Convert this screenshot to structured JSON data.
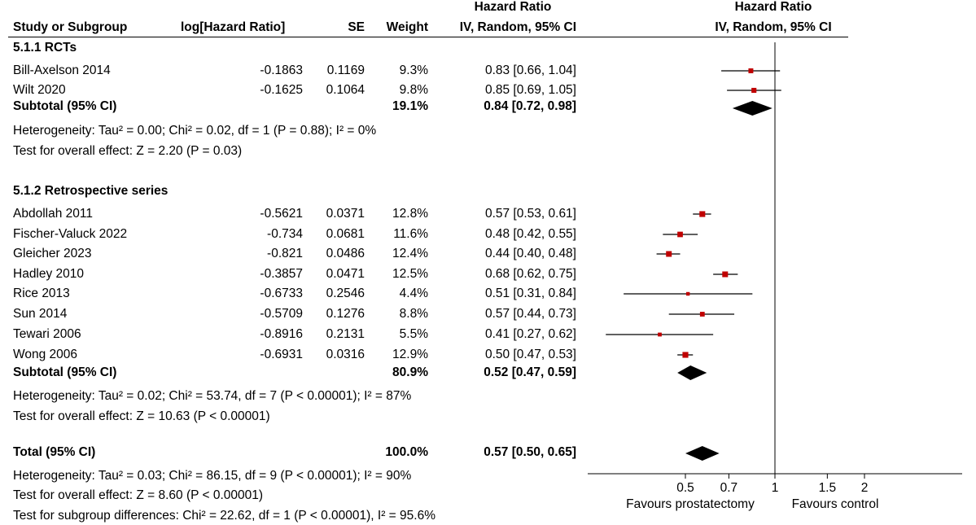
{
  "header": {
    "col_study": "Study or Subgroup",
    "col_loghr": "log[Hazard Ratio]",
    "col_se": "SE",
    "col_weight": "Weight",
    "col_hr_top": "Hazard Ratio",
    "col_hr_sub": "IV, Random, 95% CI",
    "plot_hr_top": "Hazard Ratio",
    "plot_hr_sub": "IV, Random, 95% CI"
  },
  "subgroups": [
    {
      "title": "5.1.1 RCTs",
      "studies": [
        {
          "name": "Bill-Axelson 2014",
          "loghr": "-0.1863",
          "se": "0.1169",
          "weight": "9.3%",
          "ci": "0.83 [0.66, 1.04]"
        },
        {
          "name": "Wilt 2020",
          "loghr": "-0.1625",
          "se": "0.1064",
          "weight": "9.8%",
          "ci": "0.85 [0.69, 1.05]"
        }
      ],
      "subtotal": {
        "label": "Subtotal (95% CI)",
        "weight": "19.1%",
        "ci": "0.84 [0.72, 0.98]"
      },
      "heterogeneity": "Heterogeneity: Tau² = 0.00; Chi² = 0.02, df = 1 (P = 0.88); I² = 0%",
      "overall": "Test for overall effect: Z = 2.20 (P = 0.03)"
    },
    {
      "title": "5.1.2 Retrospective series",
      "studies": [
        {
          "name": "Abdollah 2011",
          "loghr": "-0.5621",
          "se": "0.0371",
          "weight": "12.8%",
          "ci": "0.57 [0.53, 0.61]"
        },
        {
          "name": "Fischer-Valuck 2022",
          "loghr": "-0.734",
          "se": "0.0681",
          "weight": "11.6%",
          "ci": "0.48 [0.42, 0.55]"
        },
        {
          "name": "Gleicher 2023",
          "loghr": "-0.821",
          "se": "0.0486",
          "weight": "12.4%",
          "ci": "0.44 [0.40, 0.48]"
        },
        {
          "name": "Hadley 2010",
          "loghr": "-0.3857",
          "se": "0.0471",
          "weight": "12.5%",
          "ci": "0.68 [0.62, 0.75]"
        },
        {
          "name": "Rice 2013",
          "loghr": "-0.6733",
          "se": "0.2546",
          "weight": "4.4%",
          "ci": "0.51 [0.31, 0.84]"
        },
        {
          "name": "Sun 2014",
          "loghr": "-0.5709",
          "se": "0.1276",
          "weight": "8.8%",
          "ci": "0.57 [0.44, 0.73]"
        },
        {
          "name": "Tewari 2006",
          "loghr": "-0.8916",
          "se": "0.2131",
          "weight": "5.5%",
          "ci": "0.41 [0.27, 0.62]"
        },
        {
          "name": "Wong 2006",
          "loghr": "-0.6931",
          "se": "0.0316",
          "weight": "12.9%",
          "ci": "0.50 [0.47, 0.53]"
        }
      ],
      "subtotal": {
        "label": "Subtotal (95% CI)",
        "weight": "80.9%",
        "ci": "0.52 [0.47, 0.59]"
      },
      "heterogeneity": "Heterogeneity: Tau² = 0.02; Chi² = 53.74, df = 7 (P < 0.00001); I² = 87%",
      "overall": "Test for overall effect: Z = 10.63 (P < 0.00001)"
    }
  ],
  "total": {
    "label": "Total (95% CI)",
    "weight": "100.0%",
    "ci": "0.57 [0.50, 0.65]",
    "heterogeneity": "Heterogeneity: Tau² = 0.03; Chi² = 86.15, df = 9 (P < 0.00001); I² = 90%",
    "overall": "Test for overall effect: Z = 8.60 (P < 0.00001)",
    "subgroup_diff": "Test for subgroup differences: Chi² = 22.62, df = 1 (P < 0.00001), I² = 95.6%"
  },
  "axis": {
    "ticks": [
      "0.5",
      "0.7",
      "1",
      "1.5",
      "2"
    ],
    "favours_left": "Favours prostatectomy",
    "favours_right": "Favours control"
  },
  "colors": {
    "marker": "#c00000",
    "line": "#000000",
    "diamond": "#000000"
  },
  "chart_data": {
    "type": "forest",
    "scale": "log",
    "xlim": [
      0.35,
      2.4
    ],
    "reference_line": 1,
    "x_ticks": [
      0.5,
      0.7,
      1,
      1.5,
      2
    ],
    "studies": [
      {
        "name": "Bill-Axelson 2014",
        "hr": 0.83,
        "lo": 0.66,
        "hi": 1.04
      },
      {
        "name": "Wilt 2020",
        "hr": 0.85,
        "lo": 0.69,
        "hi": 1.05
      },
      {
        "name": "Abdollah 2011",
        "hr": 0.57,
        "lo": 0.53,
        "hi": 0.61
      },
      {
        "name": "Fischer-Valuck 2022",
        "hr": 0.48,
        "lo": 0.42,
        "hi": 0.55
      },
      {
        "name": "Gleicher 2023",
        "hr": 0.44,
        "lo": 0.4,
        "hi": 0.48
      },
      {
        "name": "Hadley 2010",
        "hr": 0.68,
        "lo": 0.62,
        "hi": 0.75
      },
      {
        "name": "Rice 2013",
        "hr": 0.51,
        "lo": 0.31,
        "hi": 0.84
      },
      {
        "name": "Sun 2014",
        "hr": 0.57,
        "lo": 0.44,
        "hi": 0.73
      },
      {
        "name": "Tewari 2006",
        "hr": 0.41,
        "lo": 0.27,
        "hi": 0.62
      },
      {
        "name": "Wong 2006",
        "hr": 0.5,
        "lo": 0.47,
        "hi": 0.53
      }
    ],
    "pooled": [
      {
        "name": "Subtotal 5.1.1 RCTs",
        "hr": 0.84,
        "lo": 0.72,
        "hi": 0.98
      },
      {
        "name": "Subtotal 5.1.2 Retrospective series",
        "hr": 0.52,
        "lo": 0.47,
        "hi": 0.59
      },
      {
        "name": "Total",
        "hr": 0.57,
        "lo": 0.5,
        "hi": 0.65
      }
    ]
  }
}
